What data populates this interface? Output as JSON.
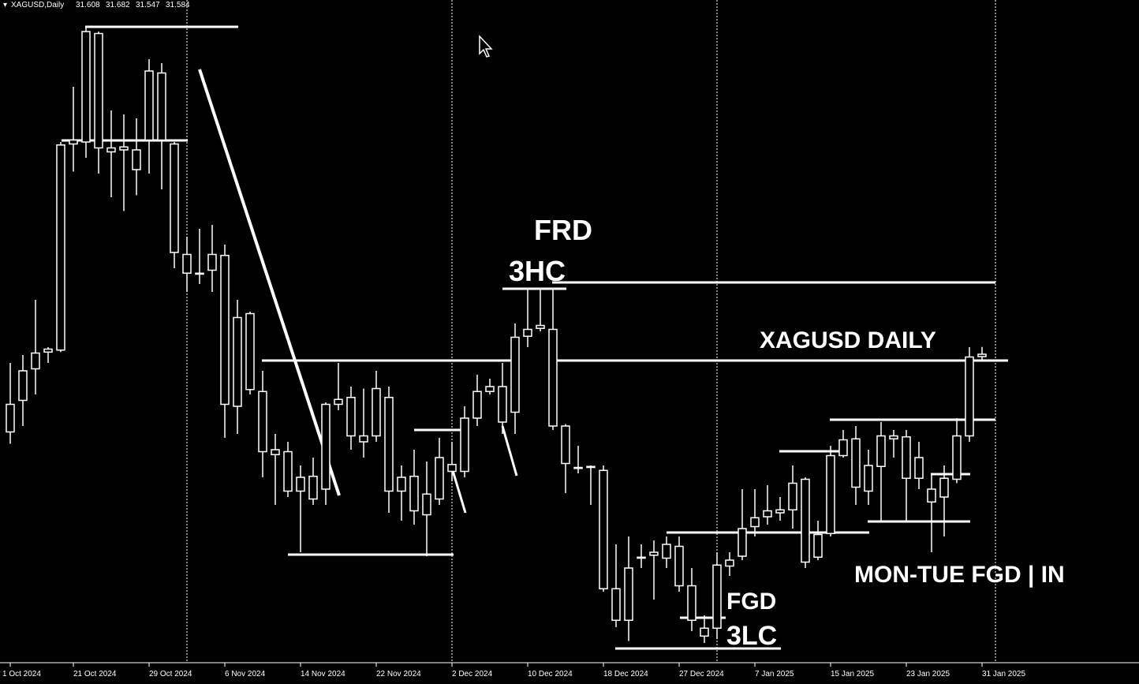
{
  "chart_data": {
    "type": "candlestick",
    "title": "XAGUSD,Daily",
    "readout": [
      31.608,
      31.682,
      31.547,
      31.584
    ],
    "annotations": [
      "FRD",
      "3HC",
      "XAGUSD DAILY",
      "MON-TUE FGD | IN",
      "FGD",
      "3LC"
    ],
    "categories": [
      "1 Oct 2024",
      null,
      null,
      null,
      null,
      "21 Oct 2024",
      null,
      null,
      null,
      null,
      null,
      "29 Oct 2024",
      null,
      null,
      null,
      null,
      null,
      "6 Nov 2024",
      null,
      null,
      null,
      null,
      null,
      "14 Nov 2024",
      null,
      null,
      null,
      null,
      null,
      "22 Nov 2024",
      null,
      null,
      null,
      null,
      null,
      "2 Dec 2024",
      null,
      null,
      null,
      null,
      null,
      "10 Dec 2024",
      null,
      null,
      null,
      null,
      null,
      "18 Dec 2024",
      null,
      null,
      null,
      null,
      null,
      "27 Dec 2024",
      null,
      null,
      null,
      null,
      null,
      "7 Jan 2025",
      null,
      null,
      null,
      null,
      null,
      "15 Jan 2025",
      null,
      null,
      null,
      null,
      null,
      "23 Jan 2025",
      null,
      null,
      null,
      null,
      null,
      "31 Jan 2025"
    ],
    "open": [
      30.82,
      31.14,
      31.46,
      31.63,
      31.65,
      33.74,
      33.76,
      34.86,
      33.7,
      33.68,
      33.68,
      33.78,
      34.46,
      33.74,
      32.62,
      32.43,
      32.46,
      32.61,
      31.08,
      32.02,
      31.23,
      30.59,
      30.62,
      30.22,
      30.37,
      30.24,
      31.1,
      31.17,
      30.78,
      30.78,
      31.17,
      30.22,
      30.37,
      29.98,
      30.14,
      30.49,
      30.42,
      30.96,
      31.23,
      31.28,
      31.02,
      31.79,
      31.87,
      31.86,
      30.88,
      30.46,
      30.47,
      30.43,
      29.23,
      28.91,
      29.54,
      29.57,
      29.54,
      29.66,
      29.26,
      28.83,
      28.83,
      29.46,
      29.56,
      29.86,
      29.96,
      30.0,
      30.03,
      30.34,
      29.55,
      29.79,
      30.58,
      30.75,
      30.22,
      30.47,
      30.75,
      30.77,
      30.35,
      30.24,
      30.16,
      30.34,
      30.78,
      31.608
    ],
    "high": [
      31.52,
      31.6,
      32.16,
      31.68,
      33.76,
      34.32,
      34.92,
      34.88,
      34.08,
      34.04,
      34.0,
      34.6,
      34.56,
      33.76,
      32.8,
      32.88,
      32.92,
      32.72,
      32.16,
      32.04,
      31.44,
      30.8,
      30.72,
      30.48,
      30.56,
      31.12,
      31.52,
      31.28,
      31.26,
      31.44,
      31.28,
      30.48,
      30.64,
      30.52,
      30.76,
      30.72,
      31.08,
      31.4,
      31.36,
      31.52,
      31.92,
      32.26,
      32.26,
      32.26,
      30.9,
      30.68,
      30.48,
      30.48,
      29.68,
      29.76,
      29.68,
      29.72,
      29.76,
      29.76,
      29.44,
      28.96,
      29.6,
      29.6,
      30.24,
      30.24,
      30.28,
      30.16,
      30.48,
      30.36,
      29.92,
      30.68,
      30.84,
      30.88,
      30.64,
      30.92,
      30.84,
      30.84,
      30.72,
      30.4,
      30.48,
      30.96,
      31.68,
      31.682
    ],
    "low": [
      30.7,
      30.88,
      31.2,
      31.52,
      31.63,
      33.46,
      33.6,
      33.44,
      33.2,
      33.06,
      33.22,
      33.44,
      33.28,
      32.48,
      32.24,
      32.32,
      32.24,
      30.76,
      30.8,
      31.2,
      30.36,
      30.08,
      30.16,
      29.6,
      30.08,
      30.08,
      31.04,
      30.64,
      30.56,
      30.72,
      30.0,
      29.92,
      29.88,
      29.56,
      30.08,
      30.32,
      30.36,
      30.88,
      31.2,
      30.8,
      30.8,
      31.68,
      31.84,
      30.84,
      30.2,
      30.4,
      30.08,
      29.2,
      28.84,
      28.7,
      29.44,
      29.12,
      29.44,
      29.2,
      28.8,
      28.68,
      28.72,
      29.36,
      29.52,
      29.76,
      29.88,
      29.92,
      29.84,
      29.44,
      29.52,
      29.76,
      30.56,
      30.08,
      30.08,
      29.92,
      30.56,
      29.92,
      30.24,
      29.6,
      29.76,
      30.3,
      30.72,
      31.547
    ],
    "close": [
      31.1,
      31.44,
      31.62,
      31.66,
      33.73,
      33.78,
      34.88,
      33.7,
      33.66,
      33.71,
      33.48,
      34.48,
      33.78,
      32.64,
      32.43,
      32.42,
      32.62,
      31.1,
      31.98,
      31.25,
      30.62,
      30.64,
      30.22,
      30.36,
      30.14,
      31.1,
      31.15,
      30.78,
      30.72,
      31.26,
      30.22,
      30.36,
      30.02,
      30.19,
      30.56,
      30.42,
      30.96,
      31.23,
      31.28,
      30.92,
      31.78,
      31.86,
      31.9,
      30.88,
      30.5,
      30.45,
      30.46,
      29.23,
      28.91,
      29.44,
      29.55,
      29.6,
      29.68,
      29.26,
      28.91,
      28.75,
      29.47,
      29.52,
      29.84,
      29.95,
      30.02,
      30.03,
      30.3,
      29.5,
      29.78,
      30.58,
      30.74,
      30.26,
      30.48,
      30.78,
      30.78,
      30.35,
      30.56,
      30.11,
      30.35,
      30.78,
      31.58,
      31.584
    ],
    "ylim": [
      28.264,
      35.2
    ],
    "color": "#ffffff"
  }
}
